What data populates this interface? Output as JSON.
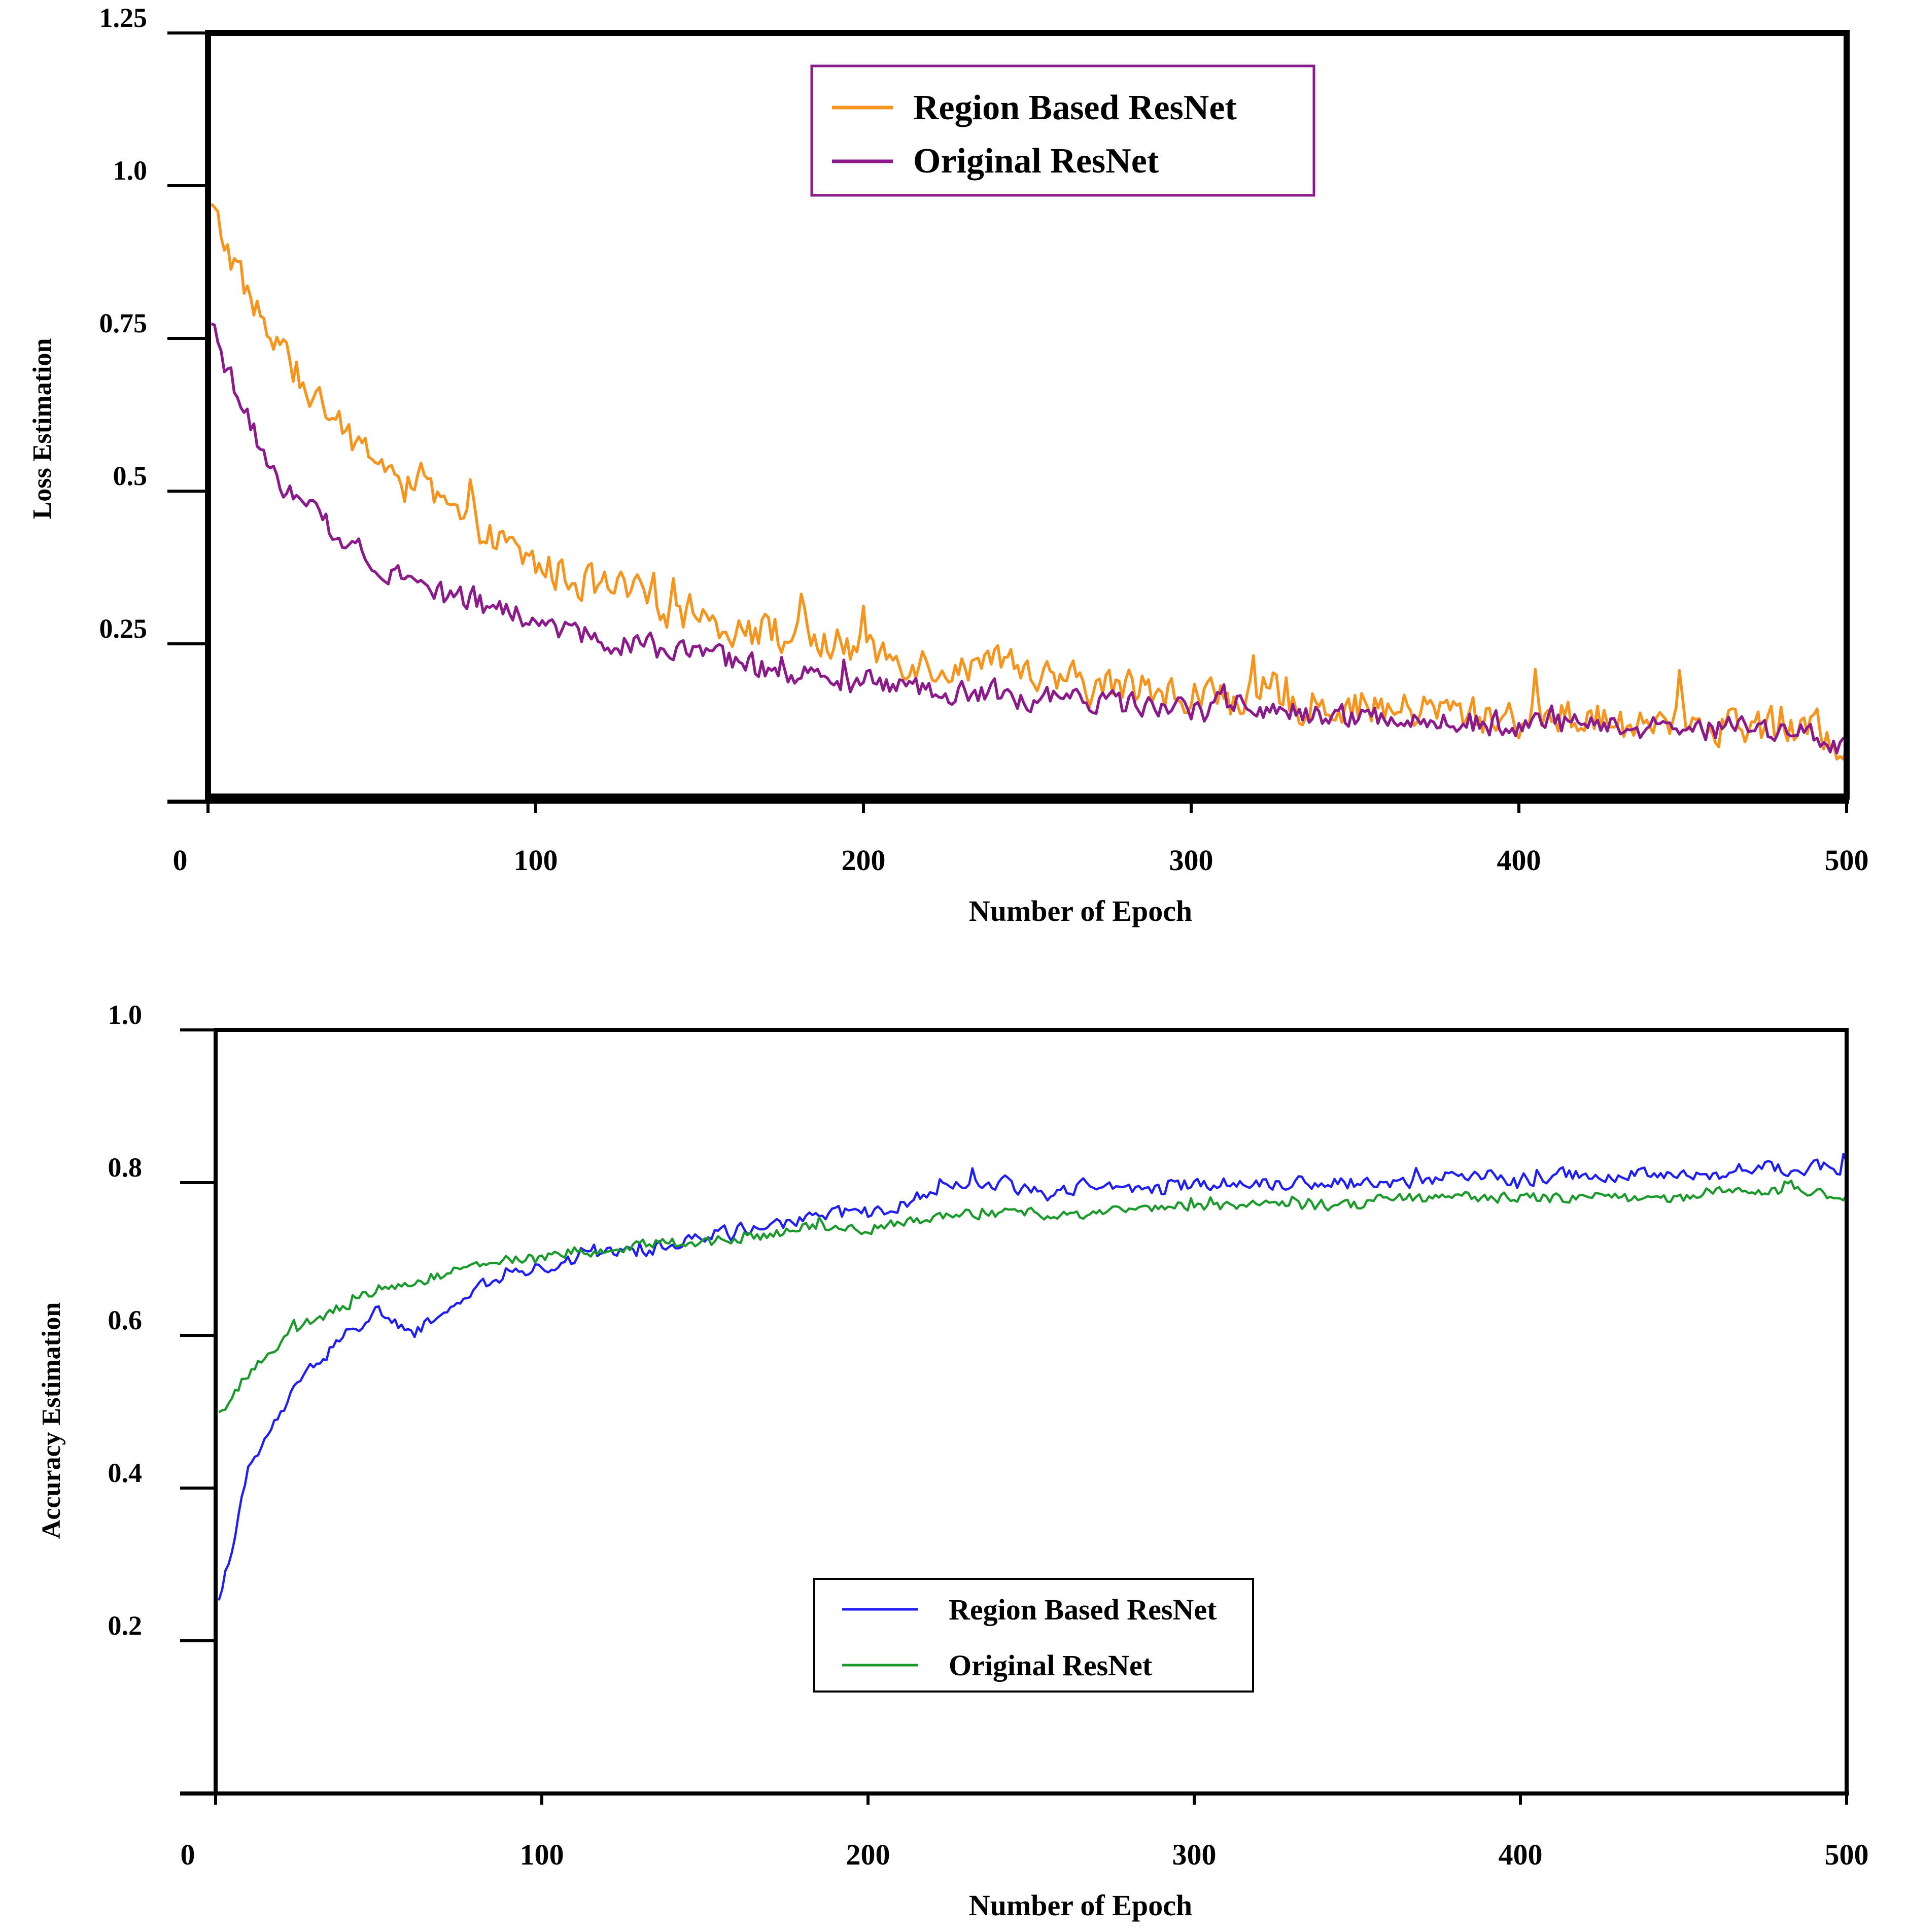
{
  "chart_data": [
    {
      "type": "line",
      "title": "",
      "xlabel": "Number of Epoch",
      "ylabel": "Loss Estimation",
      "xlim": [
        0,
        500
      ],
      "ylim": [
        0,
        1.25
      ],
      "x_ticks": [
        0,
        100,
        200,
        300,
        400,
        500
      ],
      "x_tick_labels": [
        "0",
        "100",
        "200",
        "300",
        "400",
        "500"
      ],
      "y_ticks": [
        0.25,
        0.5,
        0.75,
        1.0,
        1.25
      ],
      "y_tick_labels": [
        "0.25",
        "0.5",
        "0.75",
        "1.0",
        "1.25"
      ],
      "grid": false,
      "legend_position": "top-center",
      "series": [
        {
          "name": "Region Based ResNet",
          "color": "#f7941d",
          "x": [
            0,
            10,
            20,
            30,
            40,
            50,
            60,
            70,
            80,
            90,
            100,
            110,
            120,
            130,
            140,
            150,
            160,
            170,
            180,
            190,
            200,
            210,
            220,
            230,
            240,
            250,
            260,
            270,
            280,
            290,
            300,
            310,
            320,
            330,
            340,
            350,
            360,
            370,
            380,
            390,
            400,
            410,
            420,
            430,
            440,
            450,
            460,
            470,
            480,
            490,
            500
          ],
          "values": [
            0.97,
            0.85,
            0.74,
            0.67,
            0.6,
            0.56,
            0.52,
            0.48,
            0.44,
            0.41,
            0.38,
            0.36,
            0.34,
            0.33,
            0.31,
            0.3,
            0.28,
            0.27,
            0.26,
            0.25,
            0.24,
            0.23,
            0.22,
            0.21,
            0.21,
            0.2,
            0.19,
            0.18,
            0.18,
            0.17,
            0.17,
            0.16,
            0.16,
            0.15,
            0.15,
            0.15,
            0.14,
            0.14,
            0.14,
            0.13,
            0.13,
            0.13,
            0.13,
            0.12,
            0.12,
            0.12,
            0.12,
            0.12,
            0.11,
            0.11,
            0.08
          ]
        },
        {
          "name": "Original ResNet",
          "color": "#8b1a8b",
          "x": [
            0,
            10,
            20,
            30,
            40,
            50,
            60,
            70,
            80,
            90,
            100,
            110,
            120,
            130,
            140,
            150,
            160,
            170,
            180,
            190,
            200,
            210,
            220,
            230,
            240,
            250,
            260,
            270,
            280,
            290,
            300,
            310,
            320,
            330,
            340,
            350,
            360,
            370,
            380,
            390,
            400,
            410,
            420,
            430,
            440,
            450,
            460,
            470,
            480,
            490,
            500
          ],
          "values": [
            0.78,
            0.64,
            0.53,
            0.47,
            0.43,
            0.39,
            0.36,
            0.34,
            0.32,
            0.3,
            0.29,
            0.27,
            0.26,
            0.25,
            0.24,
            0.23,
            0.22,
            0.21,
            0.2,
            0.19,
            0.19,
            0.18,
            0.17,
            0.17,
            0.17,
            0.16,
            0.16,
            0.15,
            0.15,
            0.15,
            0.14,
            0.14,
            0.14,
            0.14,
            0.13,
            0.13,
            0.13,
            0.13,
            0.12,
            0.12,
            0.12,
            0.12,
            0.12,
            0.11,
            0.11,
            0.11,
            0.11,
            0.11,
            0.11,
            0.1,
            0.08
          ]
        }
      ]
    },
    {
      "type": "line",
      "title": "",
      "xlabel": "Number of Epoch",
      "ylabel": "Accuracy Estimation",
      "xlim": [
        0,
        500
      ],
      "ylim": [
        0,
        1.0
      ],
      "x_ticks": [
        0,
        100,
        200,
        300,
        400,
        500
      ],
      "x_tick_labels": [
        "0",
        "100",
        "200",
        "300",
        "400",
        "500"
      ],
      "y_ticks": [
        0.2,
        0.4,
        0.6,
        0.8,
        1.0
      ],
      "y_tick_labels": [
        "0.2",
        "0.4",
        "0.6",
        "0.8",
        "1.0"
      ],
      "grid": false,
      "legend_position": "bottom-center",
      "series": [
        {
          "name": "Region Based ResNet",
          "color": "#1f1ff5",
          "x": [
            0,
            10,
            20,
            30,
            40,
            50,
            60,
            70,
            80,
            90,
            100,
            110,
            120,
            130,
            140,
            150,
            160,
            170,
            180,
            190,
            200,
            210,
            220,
            230,
            240,
            250,
            260,
            270,
            280,
            290,
            300,
            310,
            320,
            330,
            340,
            350,
            360,
            370,
            380,
            390,
            400,
            410,
            420,
            430,
            440,
            450,
            460,
            470,
            480,
            490,
            500
          ],
          "values": [
            0.23,
            0.42,
            0.5,
            0.56,
            0.6,
            0.63,
            0.6,
            0.63,
            0.66,
            0.68,
            0.69,
            0.7,
            0.71,
            0.71,
            0.72,
            0.73,
            0.74,
            0.74,
            0.75,
            0.76,
            0.76,
            0.77,
            0.79,
            0.8,
            0.8,
            0.79,
            0.79,
            0.8,
            0.79,
            0.79,
            0.8,
            0.8,
            0.8,
            0.8,
            0.8,
            0.8,
            0.8,
            0.8,
            0.81,
            0.81,
            0.8,
            0.81,
            0.81,
            0.81,
            0.81,
            0.81,
            0.81,
            0.82,
            0.82,
            0.82,
            0.82
          ]
        },
        {
          "name": "Original ResNet",
          "color": "#1a9a2a",
          "x": [
            0,
            10,
            20,
            30,
            40,
            50,
            60,
            70,
            80,
            90,
            100,
            110,
            120,
            130,
            140,
            150,
            160,
            170,
            180,
            190,
            200,
            210,
            220,
            230,
            240,
            250,
            260,
            270,
            280,
            290,
            300,
            310,
            320,
            330,
            340,
            350,
            360,
            370,
            380,
            390,
            400,
            410,
            420,
            430,
            440,
            450,
            460,
            470,
            480,
            490,
            500
          ],
          "values": [
            0.49,
            0.55,
            0.59,
            0.62,
            0.64,
            0.66,
            0.67,
            0.68,
            0.69,
            0.7,
            0.7,
            0.71,
            0.71,
            0.72,
            0.72,
            0.72,
            0.73,
            0.73,
            0.74,
            0.74,
            0.74,
            0.75,
            0.75,
            0.76,
            0.76,
            0.76,
            0.76,
            0.76,
            0.77,
            0.77,
            0.77,
            0.77,
            0.77,
            0.77,
            0.77,
            0.77,
            0.78,
            0.78,
            0.78,
            0.78,
            0.78,
            0.78,
            0.78,
            0.78,
            0.78,
            0.78,
            0.79,
            0.79,
            0.79,
            0.79,
            0.78
          ]
        }
      ]
    }
  ]
}
